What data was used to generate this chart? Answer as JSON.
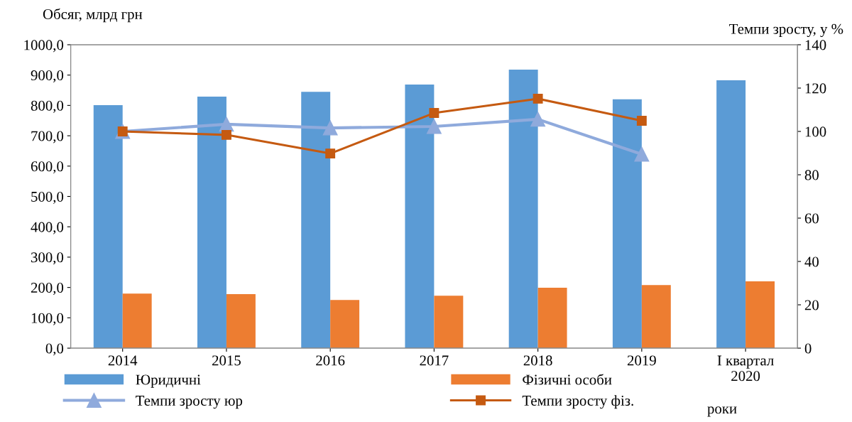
{
  "chart_data": {
    "type": "bar",
    "categories": [
      "2014",
      "2015",
      "2016",
      "2017",
      "2018",
      "2019",
      "I квартал\n2020"
    ],
    "xlabel": "роки",
    "ylabel": "Обсяг, млрд грн",
    "y2label": "Темпи зросту, у %",
    "series": [
      {
        "name": "Юридичні",
        "color": "#5b9bd5",
        "values": [
          801,
          829,
          845,
          869,
          918,
          820,
          883
        ]
      },
      {
        "name": "Фізичні особи",
        "color": "#ed7d31",
        "values": [
          180,
          178,
          159,
          173,
          199,
          208,
          220
        ]
      },
      {
        "name": "Темпи зросту юр",
        "type": "line",
        "axis": "y2",
        "marker": "triangle",
        "color": "#8faadc",
        "values": [
          100,
          103.3,
          101.6,
          102.3,
          105.6,
          89.5,
          null
        ]
      },
      {
        "name": "Темпи зросту фіз.",
        "type": "line",
        "axis": "y2",
        "marker": "square",
        "color": "#c55a11",
        "values": [
          100,
          98.4,
          89.8,
          108.5,
          115.1,
          104.9,
          null
        ]
      }
    ],
    "ylim": [
      0,
      1000
    ],
    "yticks": [
      {
        "value": 0,
        "label": "0,0"
      },
      {
        "value": 100,
        "label": "100,0"
      },
      {
        "value": 200,
        "label": "200,0"
      },
      {
        "value": 300,
        "label": "300,0"
      },
      {
        "value": 400,
        "label": "400,0"
      },
      {
        "value": 500,
        "label": "500,0"
      },
      {
        "value": 600,
        "label": "600,0"
      },
      {
        "value": 700,
        "label": "700,0"
      },
      {
        "value": 800,
        "label": "800,0"
      },
      {
        "value": 900,
        "label": "900,0"
      },
      {
        "value": 1000,
        "label": "1000,0"
      }
    ],
    "y2lim": [
      0,
      140
    ],
    "y2ticks": [
      0,
      20,
      40,
      60,
      80,
      100,
      120,
      140
    ],
    "grid": false,
    "legend": "bottom"
  }
}
